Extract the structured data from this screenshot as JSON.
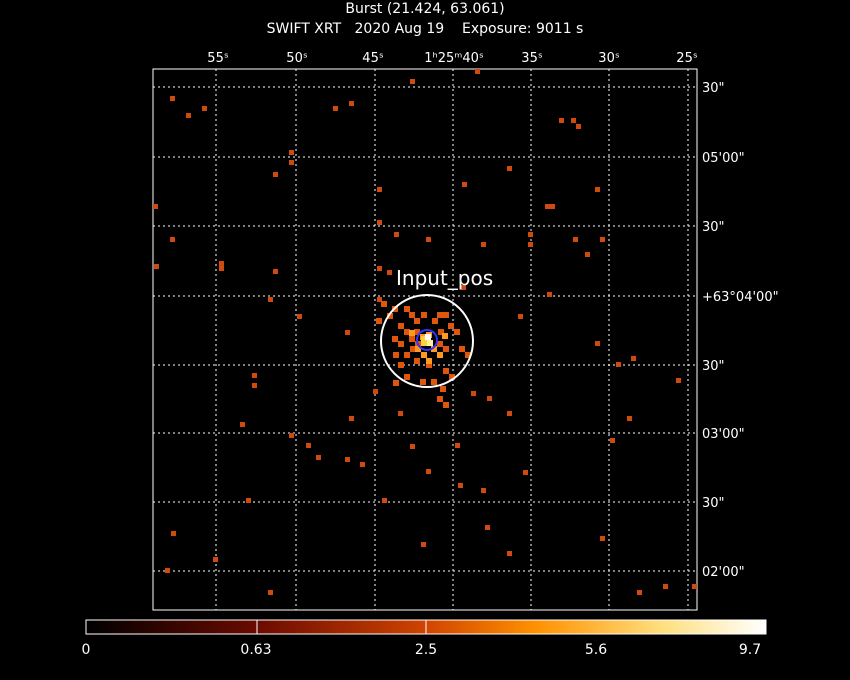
{
  "header": {
    "title_line1": "Burst (21.424, 63.061)",
    "title_line2": "SWIFT XRT   2020 Aug 19    Exposure: 9011 s"
  },
  "image": {
    "ra_ticks": [
      "55s",
      "50s",
      "45s",
      "1h25m40s",
      "35s",
      "30s",
      "25s"
    ],
    "dec_ticks": [
      "30\"",
      "05'00\"",
      "30\"",
      "+63°04'00\"",
      "30\"",
      "03'00\"",
      "30\"",
      "02'00\""
    ],
    "source_label": "Input_pos",
    "frame_color": "#ffffff",
    "grid_color": "#ffffff",
    "circle_outer_color": "#ffffff",
    "circle_inner_color": "#3333ff"
  },
  "colorbar": {
    "labels": [
      "0",
      "0.63",
      "2.5",
      "5.6",
      "9.7"
    ],
    "values": [
      0,
      0.63,
      2.5,
      5.6,
      9.7
    ],
    "colors": [
      "#000000",
      "#5a0800",
      "#c03a00",
      "#ff8c00",
      "#ffd060",
      "#ffffff"
    ]
  }
}
